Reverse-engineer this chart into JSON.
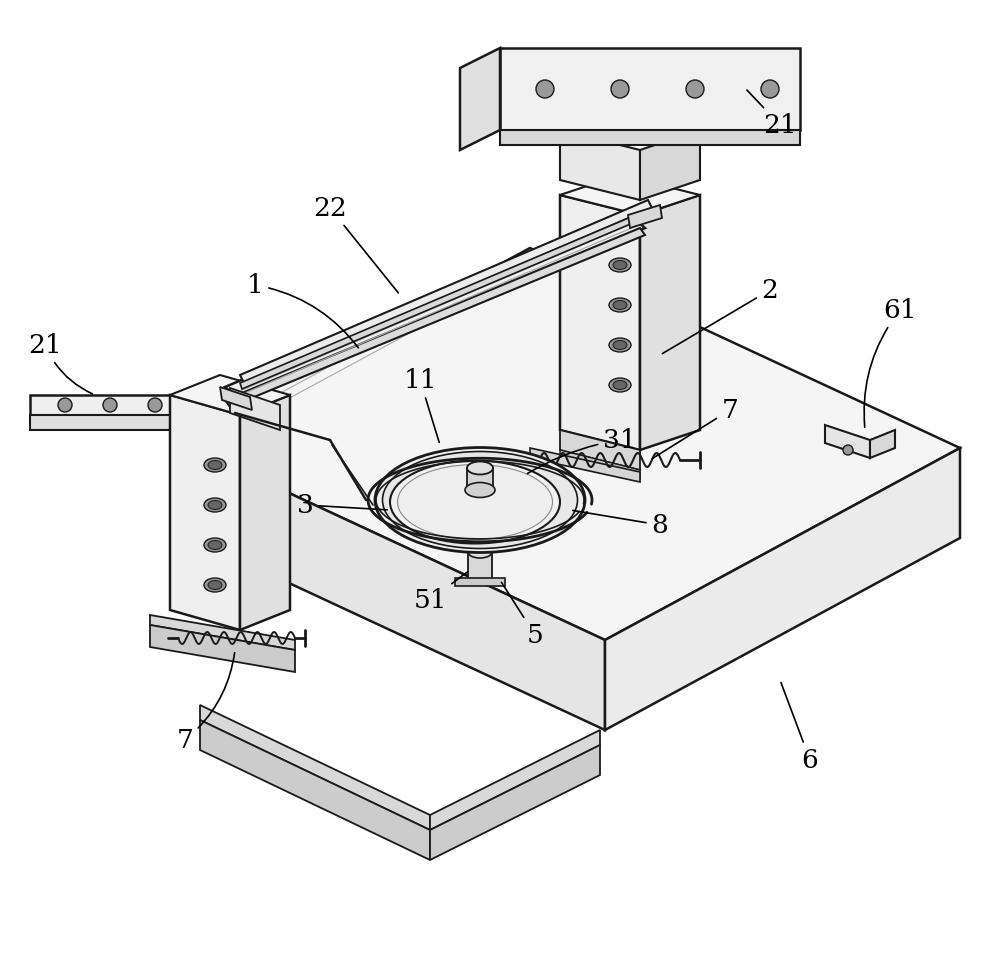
{
  "background_color": "#ffffff",
  "lc": "#1a1a1a",
  "face_light": "#f2f2f2",
  "face_mid": "#e0e0e0",
  "face_dark": "#d0d0d0",
  "face_darker": "#c0c0c0",
  "hole_color": "#b0b0b0",
  "hole_inner": "#888888"
}
